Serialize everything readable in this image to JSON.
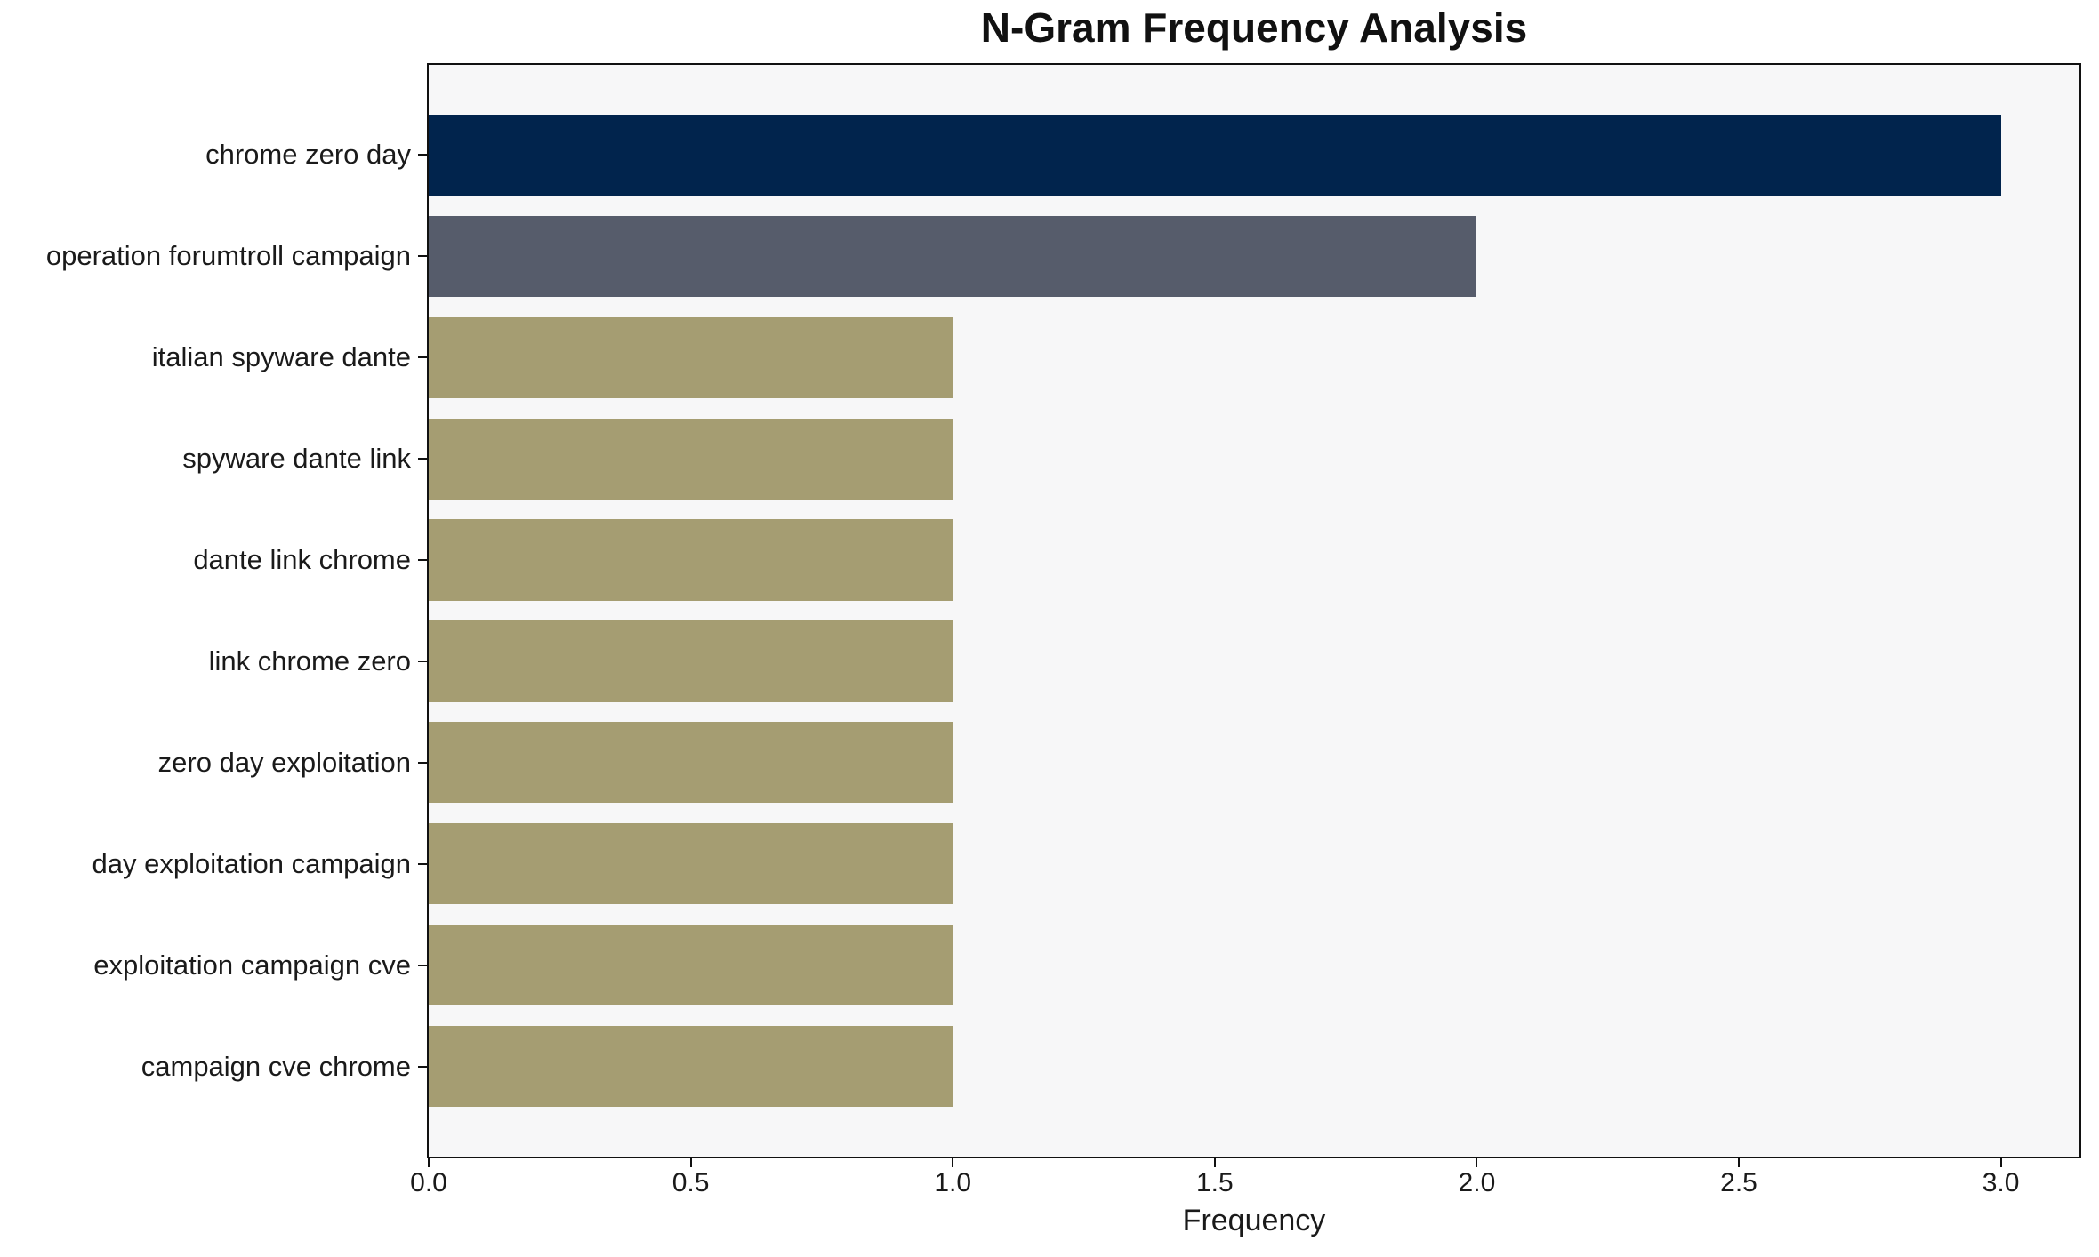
{
  "chart_data": {
    "type": "bar",
    "orientation": "horizontal",
    "title": "N-Gram Frequency Analysis",
    "xlabel": "Frequency",
    "ylabel": "",
    "categories": [
      "chrome zero day",
      "operation forumtroll campaign",
      "italian spyware dante",
      "spyware dante link",
      "dante link chrome",
      "link chrome zero",
      "zero day exploitation",
      "day exploitation campaign",
      "exploitation campaign cve",
      "campaign cve chrome"
    ],
    "values": [
      3,
      2,
      1,
      1,
      1,
      1,
      1,
      1,
      1,
      1
    ],
    "bar_colors": [
      "#01244d",
      "#565c6b",
      "#a59d72",
      "#a59d72",
      "#a59d72",
      "#a59d72",
      "#a59d72",
      "#a59d72",
      "#a59d72",
      "#a59d72"
    ],
    "xlim": [
      0,
      3.15
    ],
    "x_ticks": [
      {
        "value": 0.0,
        "label": "0.0"
      },
      {
        "value": 0.5,
        "label": "0.5"
      },
      {
        "value": 1.0,
        "label": "1.0"
      },
      {
        "value": 1.5,
        "label": "1.5"
      },
      {
        "value": 2.0,
        "label": "2.0"
      },
      {
        "value": 2.5,
        "label": "2.5"
      },
      {
        "value": 3.0,
        "label": "3.0"
      }
    ],
    "grid": false,
    "legend": null,
    "plot_background": "#f7f7f8",
    "spine_color": "#111111"
  }
}
